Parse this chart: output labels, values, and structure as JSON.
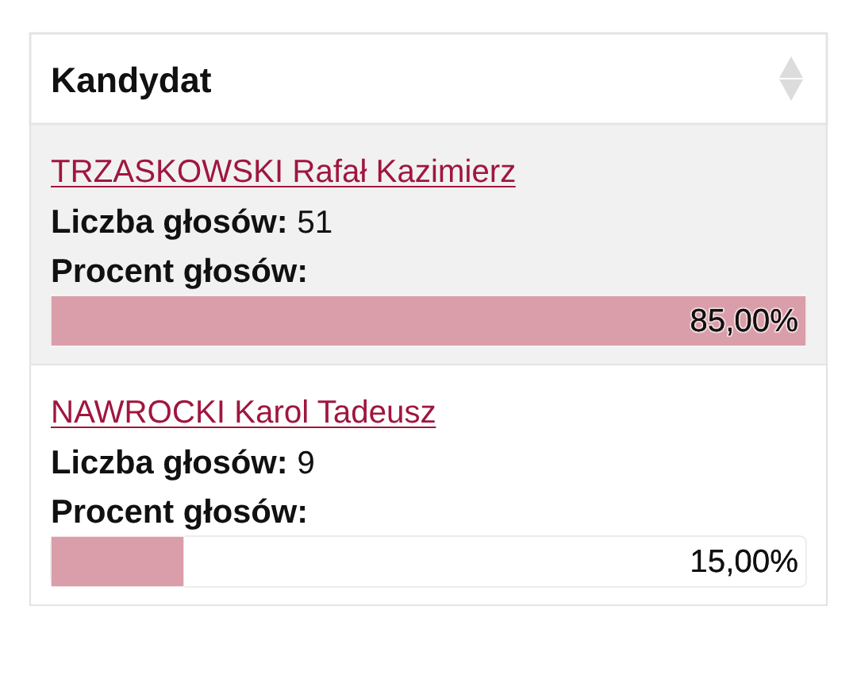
{
  "chart_data": {
    "type": "bar",
    "orientation": "horizontal",
    "title": "Kandydat",
    "categories": [
      "TRZASKOWSKI Rafał Kazimierz",
      "NAWROCKI Karol Tadeusz"
    ],
    "values": [
      85,
      15
    ],
    "value_labels": [
      "85,00%",
      "15,00%"
    ],
    "color": "#d99ea9",
    "xlim": [
      0,
      85
    ],
    "annotations": [
      "Liczba głosów: 51",
      "Procent głosów:",
      "Liczba głosów: 9",
      "Procent głosów:"
    ]
  }
}
